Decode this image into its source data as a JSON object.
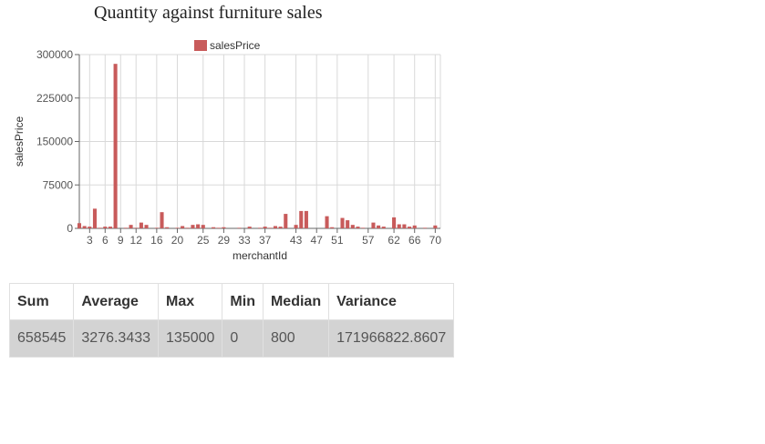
{
  "chart_data": {
    "type": "bar",
    "title": "Quantity against furniture sales",
    "xlabel": "merchantId",
    "ylabel": "salesPrice",
    "legend": {
      "placement": "top-center",
      "entries": [
        "salesPrice"
      ]
    },
    "grid": true,
    "ylim": [
      0,
      300000
    ],
    "yticks": [
      "0",
      "75000",
      "150000",
      "225000",
      "300000"
    ],
    "xticks": [
      "3",
      "6",
      "9",
      "12",
      "16",
      "20",
      "25",
      "29",
      "33",
      "37",
      "43",
      "47",
      "51",
      "57",
      "62",
      "66",
      "70"
    ],
    "xlim": [
      1,
      71
    ],
    "series": [
      {
        "name": "salesPrice",
        "color": "#c85b5b",
        "x": [
          1,
          2,
          3,
          4,
          5,
          6,
          7,
          8,
          9,
          10,
          11,
          12,
          13,
          14,
          15,
          16,
          17,
          18,
          19,
          20,
          21,
          22,
          23,
          24,
          25,
          26,
          27,
          28,
          29,
          30,
          31,
          32,
          33,
          34,
          35,
          36,
          37,
          38,
          39,
          40,
          41,
          42,
          43,
          44,
          45,
          46,
          47,
          48,
          49,
          50,
          51,
          52,
          53,
          54,
          55,
          56,
          57,
          58,
          59,
          60,
          61,
          62,
          63,
          64,
          65,
          66,
          67,
          68,
          69,
          70
        ],
        "values": [
          9000,
          4000,
          3000,
          34000,
          1000,
          3000,
          3000,
          284000,
          0,
          1000,
          6000,
          1000,
          10000,
          6000,
          0,
          1000,
          28000,
          2000,
          0,
          1000,
          4000,
          1000,
          6000,
          7000,
          6000,
          0,
          2000,
          1000,
          2000,
          0,
          0,
          1000,
          0,
          3000,
          0,
          1000,
          3000,
          1000,
          4000,
          3000,
          25000,
          0,
          6000,
          30000,
          30000,
          0,
          0,
          0,
          21000,
          2000,
          0,
          18000,
          14000,
          6000,
          3000,
          1000,
          0,
          10000,
          5000,
          3000,
          0,
          19000,
          7000,
          7000,
          3000,
          5000,
          0,
          1000,
          0,
          5000
        ]
      }
    ]
  },
  "stats": {
    "headers": [
      "Sum",
      "Average",
      "Max",
      "Min",
      "Median",
      "Variance"
    ],
    "values": [
      "658545",
      "3276.3433",
      "135000",
      "0",
      "800",
      "171966822.8607"
    ]
  }
}
